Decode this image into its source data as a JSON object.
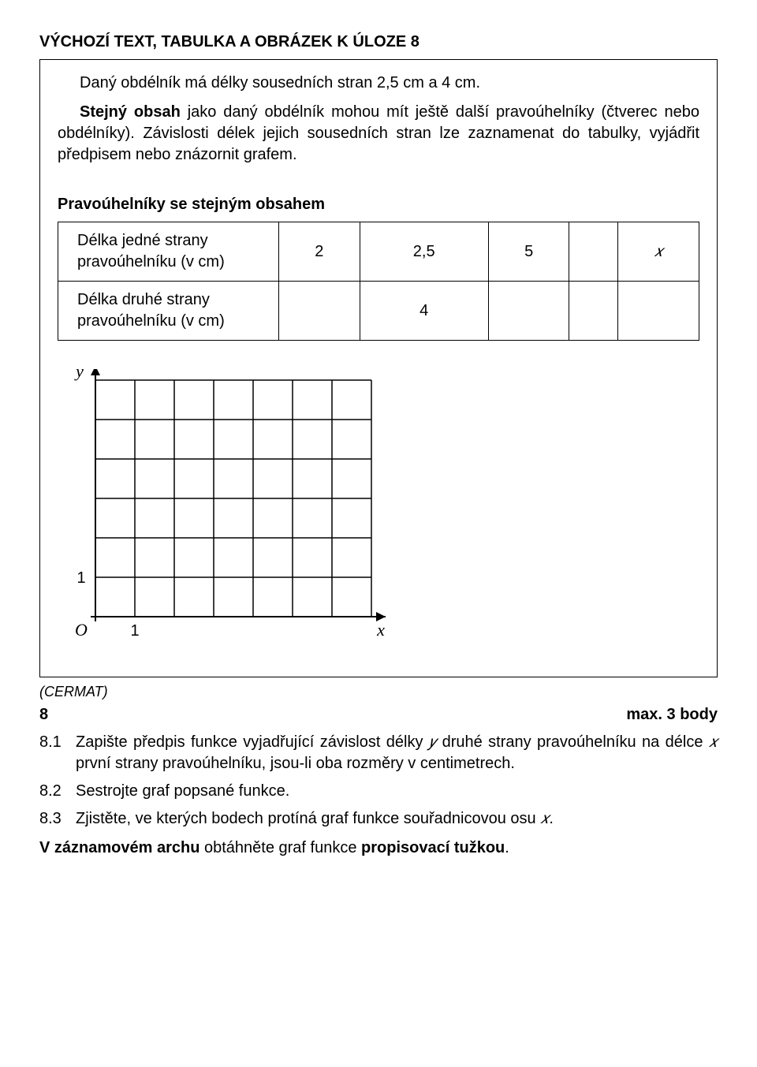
{
  "heading": "VÝCHOZÍ TEXT, TABULKA A OBRÁZEK K ÚLOZE 8",
  "framed": {
    "p1": "Daný obdélník má délky sousedních stran 2,5 cm a 4 cm.",
    "p2_a": "Stejný obsah",
    "p2_b": " jako daný obdélník mohou mít ještě další pravoúhelníky (čtverec nebo obdélníky). Závislosti délek jejich sousedních stran lze zaznamenat do tabulky, vyjádřit předpisem nebo znázornit grafem.",
    "table_title": "Pravoúhelníky se stejným obsahem",
    "table": {
      "row1_head": "Délka jedné strany pravoúhelníku (v cm)",
      "row2_head": "Délka druhé strany pravoúhelníku (v cm)",
      "r1c1": "2",
      "r1c2": "2,5",
      "r1c3": "5",
      "r1c4": "",
      "r1c5": "𝑥",
      "r2c1": "",
      "r2c2": "4",
      "r2c3": "",
      "r2c4": "",
      "r2c5": ""
    },
    "grid": {
      "y_label": "y",
      "x_label": "x",
      "origin": "O",
      "one_y": "1",
      "one_x": "1",
      "cols": 7,
      "rows": 6,
      "cell": 50,
      "stroke": "#000000",
      "stroke_width": 1.5,
      "font_family": "Times New Roman, Times, serif",
      "font_style": "italic",
      "label_fontsize": 22,
      "tick_fontsize": 20
    }
  },
  "source": "(CERMAT)",
  "score": "max. 3 body",
  "qnum": "8",
  "questions": {
    "q81_num": "8.1",
    "q81_a": "Zapište předpis funkce vyjadřující závislost délky ",
    "q81_y": "𝑦",
    "q81_b": " druhé strany pravoúhelníku na délce ",
    "q81_x": "𝑥",
    "q81_c": " první strany pravoúhelníku, jsou-li oba rozměry v centimetrech.",
    "q82_num": "8.2",
    "q82": "Sestrojte graf popsané funkce.",
    "q83_num": "8.3",
    "q83_a": "Zjistěte, ve kterých bodech protíná graf funkce souřadnicovou osu ",
    "q83_x": "𝑥",
    "q83_b": "."
  },
  "final_a": "V záznamovém archu",
  "final_b": " obtáhněte graf funkce ",
  "final_c": "propisovací tužkou",
  "final_d": "."
}
